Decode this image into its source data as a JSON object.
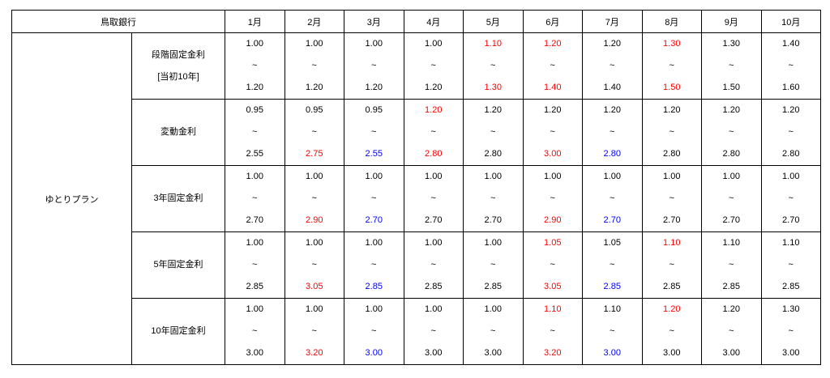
{
  "table": {
    "header": {
      "bank": "鳥取銀行",
      "months": [
        "1月",
        "2月",
        "3月",
        "4月",
        "5月",
        "6月",
        "7月",
        "8月",
        "9月",
        "10月"
      ]
    },
    "plan": "ゆとりプラン",
    "separator": "~",
    "rows": [
      {
        "label": [
          "段階固定金利",
          "[当初10年]"
        ],
        "low": [
          "1.00",
          "1.00",
          "1.00",
          "1.00",
          "1.10",
          "1.20",
          "1.20",
          "1.30",
          "1.30",
          "1.40"
        ],
        "low_colors": [
          "#000000",
          "#000000",
          "#000000",
          "#000000",
          "#ff0000",
          "#ff0000",
          "#000000",
          "#ff0000",
          "#000000",
          "#000000"
        ],
        "high": [
          "1.20",
          "1.20",
          "1.20",
          "1.20",
          "1.30",
          "1.40",
          "1.40",
          "1.50",
          "1.50",
          "1.60"
        ],
        "high_colors": [
          "#000000",
          "#000000",
          "#000000",
          "#000000",
          "#ff0000",
          "#ff0000",
          "#000000",
          "#ff0000",
          "#000000",
          "#000000"
        ]
      },
      {
        "label": [
          "変動金利"
        ],
        "low": [
          "0.95",
          "0.95",
          "0.95",
          "1.20",
          "1.20",
          "1.20",
          "1.20",
          "1.20",
          "1.20",
          "1.20"
        ],
        "low_colors": [
          "#000000",
          "#000000",
          "#000000",
          "#ff0000",
          "#000000",
          "#000000",
          "#000000",
          "#000000",
          "#000000",
          "#000000"
        ],
        "high": [
          "2.55",
          "2.75",
          "2.55",
          "2.80",
          "2.80",
          "3.00",
          "2.80",
          "2.80",
          "2.80",
          "2.80"
        ],
        "high_colors": [
          "#000000",
          "#ff0000",
          "#0000ff",
          "#ff0000",
          "#000000",
          "#ff0000",
          "#0000ff",
          "#000000",
          "#000000",
          "#000000"
        ]
      },
      {
        "label": [
          "3年固定金利"
        ],
        "low": [
          "1.00",
          "1.00",
          "1.00",
          "1.00",
          "1.00",
          "1.00",
          "1.00",
          "1.00",
          "1.00",
          "1.00"
        ],
        "low_colors": [
          "#000000",
          "#000000",
          "#000000",
          "#000000",
          "#000000",
          "#000000",
          "#000000",
          "#000000",
          "#000000",
          "#000000"
        ],
        "high": [
          "2.70",
          "2.90",
          "2.70",
          "2.70",
          "2.70",
          "2.90",
          "2.70",
          "2.70",
          "2.70",
          "2.70"
        ],
        "high_colors": [
          "#000000",
          "#ff0000",
          "#0000ff",
          "#000000",
          "#000000",
          "#ff0000",
          "#0000ff",
          "#000000",
          "#000000",
          "#000000"
        ]
      },
      {
        "label": [
          "5年固定金利"
        ],
        "low": [
          "1.00",
          "1.00",
          "1.00",
          "1.00",
          "1.00",
          "1.05",
          "1.05",
          "1.10",
          "1.10",
          "1.10"
        ],
        "low_colors": [
          "#000000",
          "#000000",
          "#000000",
          "#000000",
          "#000000",
          "#ff0000",
          "#000000",
          "#ff0000",
          "#000000",
          "#000000"
        ],
        "high": [
          "2.85",
          "3.05",
          "2.85",
          "2.85",
          "2.85",
          "3.05",
          "2.85",
          "2.85",
          "2.85",
          "2.85"
        ],
        "high_colors": [
          "#000000",
          "#ff0000",
          "#0000ff",
          "#000000",
          "#000000",
          "#ff0000",
          "#0000ff",
          "#000000",
          "#000000",
          "#000000"
        ]
      },
      {
        "label": [
          "10年固定金利"
        ],
        "low": [
          "1.00",
          "1.00",
          "1.00",
          "1.00",
          "1.00",
          "1.10",
          "1.10",
          "1.20",
          "1.20",
          "1.30"
        ],
        "low_colors": [
          "#000000",
          "#000000",
          "#000000",
          "#000000",
          "#000000",
          "#ff0000",
          "#000000",
          "#ff0000",
          "#000000",
          "#000000"
        ],
        "high": [
          "3.00",
          "3.20",
          "3.00",
          "3.00",
          "3.00",
          "3.20",
          "3.00",
          "3.00",
          "3.00",
          "3.00"
        ],
        "high_colors": [
          "#000000",
          "#ff0000",
          "#0000ff",
          "#000000",
          "#000000",
          "#ff0000",
          "#0000ff",
          "#000000",
          "#000000",
          "#000000"
        ]
      }
    ]
  }
}
